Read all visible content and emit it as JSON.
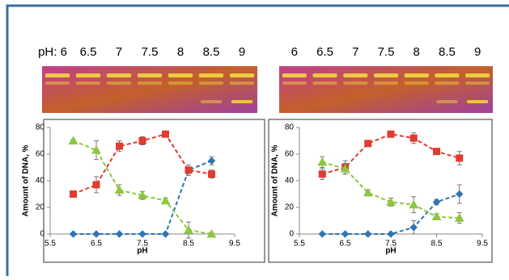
{
  "gels": [
    {
      "labels": [
        "pH: 6",
        "6.5",
        "7",
        "7.5",
        "8",
        "8.5",
        "9"
      ]
    },
    {
      "labels": [
        "6",
        "6.5",
        "7",
        "7.5",
        "8",
        "8.5",
        "9"
      ]
    }
  ],
  "chart_data": [
    {
      "type": "line",
      "x_label": "pH",
      "y_label": "Amount of DNA, %",
      "x": [
        6,
        6.5,
        7,
        7.5,
        8,
        8.5,
        9
      ],
      "xlim": [
        5.5,
        9.5
      ],
      "xticks": [
        5.5,
        6.5,
        7.5,
        8.5,
        9.5
      ],
      "ylim": [
        0,
        80
      ],
      "yticks": [
        0,
        20,
        40,
        60,
        80
      ],
      "series": [
        {
          "color": "#2e75b6",
          "marker": "diamond",
          "values": [
            0,
            0,
            0,
            0,
            0,
            48,
            55
          ],
          "errors": [
            0,
            0,
            0,
            0,
            0,
            2,
            3
          ]
        },
        {
          "color": "#e03c31",
          "marker": "square",
          "values": [
            30,
            37,
            66,
            70,
            75,
            48,
            45
          ],
          "errors": [
            2,
            6,
            4,
            3,
            2,
            4,
            3
          ]
        },
        {
          "color": "#8dc63f",
          "marker": "triangle",
          "values": [
            70,
            63,
            33,
            29,
            25,
            3,
            0
          ],
          "errors": [
            1,
            7,
            4,
            3,
            2,
            6,
            1
          ]
        }
      ]
    },
    {
      "type": "line",
      "x_label": "pH",
      "y_label": "Amount of DNA, %",
      "x": [
        6,
        6.5,
        7,
        7.5,
        8,
        8.5,
        9
      ],
      "xlim": [
        5.5,
        9.5
      ],
      "xticks": [
        5.5,
        6.5,
        7.5,
        8.5,
        9.5
      ],
      "ylim": [
        0,
        80
      ],
      "yticks": [
        0,
        20,
        40,
        60,
        80
      ],
      "series": [
        {
          "color": "#2e75b6",
          "marker": "diamond",
          "values": [
            0,
            0,
            0,
            0,
            5,
            24,
            30
          ],
          "errors": [
            0,
            0,
            0,
            0,
            5,
            2,
            7
          ]
        },
        {
          "color": "#e03c31",
          "marker": "square",
          "values": [
            45,
            50,
            68,
            75,
            72,
            62,
            57
          ],
          "errors": [
            4,
            5,
            2,
            2,
            4,
            2,
            5
          ]
        },
        {
          "color": "#8dc63f",
          "marker": "triangle",
          "values": [
            54,
            49,
            31,
            24,
            22,
            13,
            12
          ],
          "errors": [
            4,
            4,
            2,
            3,
            6,
            2,
            4
          ]
        }
      ]
    }
  ]
}
